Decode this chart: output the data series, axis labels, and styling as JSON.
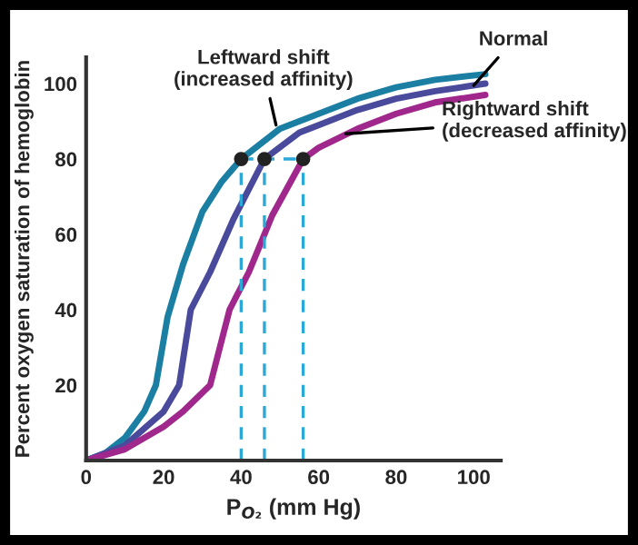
{
  "chart_data": {
    "type": "line",
    "xlabel": "P$_{O₂}$ (mm Hg)",
    "ylabel": "Percent oxygen saturation of hemoglobin",
    "xlim": [
      0,
      107
    ],
    "ylim": [
      0,
      107
    ],
    "xticks": [
      0,
      20,
      40,
      60,
      80,
      100
    ],
    "yticks": [
      20,
      40,
      60,
      80,
      100
    ],
    "grid": false,
    "legend": false,
    "series": [
      {
        "color": "#1b7fa3",
        "x": [
          0,
          5,
          10,
          15,
          18,
          21,
          25,
          30,
          35,
          40,
          50,
          60,
          70,
          80,
          90,
          103
        ],
        "values": [
          0,
          2,
          6,
          13,
          20,
          38,
          52,
          66,
          74,
          80,
          88,
          92,
          96,
          99,
          101,
          102.5
        ]
      },
      {
        "color": "#4a4a9c",
        "x": [
          0,
          10,
          20,
          24,
          27,
          32,
          38,
          46,
          55,
          60,
          70,
          80,
          90,
          103
        ],
        "values": [
          0,
          4,
          13,
          20,
          40,
          50,
          64,
          80,
          87,
          89,
          93,
          96,
          98,
          100
        ]
      },
      {
        "color": "#a0288c",
        "x": [
          0,
          10,
          20,
          25,
          32,
          37,
          42,
          48,
          56,
          60,
          70,
          80,
          90,
          103
        ],
        "values": [
          0,
          3,
          9,
          13,
          20,
          40,
          50,
          65,
          80,
          83,
          88,
          92,
          95,
          97
        ]
      },
      {
        "color": "#2aa8d8",
        "line_style": "dashed",
        "x": [
          40,
          40
        ],
        "values": [
          0,
          80
        ]
      },
      {
        "color": "#2aa8d8",
        "line_style": "dashed",
        "x": [
          46,
          46
        ],
        "values": [
          0,
          80
        ]
      },
      {
        "color": "#2aa8d8",
        "line_style": "dashed",
        "x": [
          56,
          56
        ],
        "values": [
          0,
          80
        ]
      },
      {
        "color": "#2aa8d8",
        "line_style": "dashed",
        "x": [
          40,
          56
        ],
        "values": [
          80,
          80
        ]
      },
      {
        "type": "scatter",
        "color": "#222222",
        "marker": "circle",
        "x": [
          40,
          46,
          56
        ],
        "values": [
          80,
          80,
          80
        ]
      }
    ],
    "annotations": [
      {
        "text": "Leftward shift\n(increased affinity)",
        "x": 49,
        "y": 89
      },
      {
        "text": "Normal",
        "x": 100,
        "y": 99.5
      },
      {
        "text": "Rightward shift\n(decreased affinity)",
        "x": 67,
        "y": 86.7
      }
    ]
  }
}
